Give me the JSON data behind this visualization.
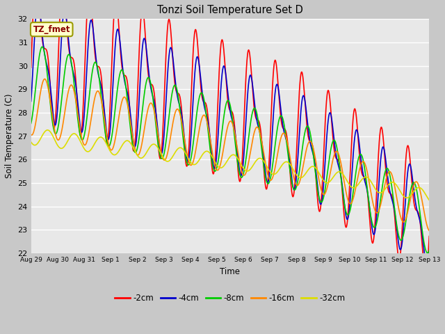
{
  "title": "Tonzi Soil Temperature Set D",
  "xlabel": "Time",
  "ylabel": "Soil Temperature (C)",
  "ylim": [
    22.0,
    32.0
  ],
  "yticks": [
    22.0,
    23.0,
    24.0,
    25.0,
    26.0,
    27.0,
    28.0,
    29.0,
    30.0,
    31.0,
    32.0
  ],
  "legend_label": "TZ_fmet",
  "series_labels": [
    "-2cm",
    "-4cm",
    "-8cm",
    "-16cm",
    "-32cm"
  ],
  "series_colors": [
    "#ff0000",
    "#0000cc",
    "#00cc00",
    "#ff8800",
    "#dddd00"
  ],
  "line_width": 1.2,
  "fig_bg_color": "#c8c8c8",
  "plot_bg_color": "#e8e8e8",
  "xtick_labels": [
    "Aug 29",
    "Aug 30",
    "Aug 31",
    "Sep 1",
    "Sep 2",
    "Sep 3",
    "Sep 4",
    "Sep 5",
    "Sep 6",
    "Sep 7",
    "Sep 8",
    "Sep 9",
    "Sep 10",
    "Sep 11",
    "Sep 12",
    "Sep 13"
  ],
  "num_days": 15,
  "points_per_day": 144
}
